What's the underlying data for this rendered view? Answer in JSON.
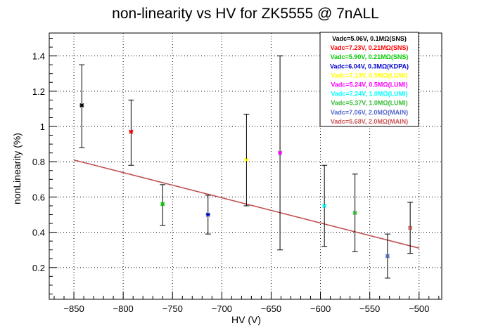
{
  "chart_data": {
    "type": "scatter",
    "title": "non-linearity vs HV for ZK5555 @ 7nALL",
    "xlabel": "HV (V)",
    "ylabel": "nonLinearity (%)",
    "xlim": [
      -875,
      -477
    ],
    "ylim": [
      0.02,
      1.53
    ],
    "x_ticks": [
      -850,
      -800,
      -750,
      -700,
      -650,
      -600,
      -550,
      -500
    ],
    "y_ticks": [
      0.2,
      0.4,
      0.6,
      0.8,
      1,
      1.2,
      1.4
    ],
    "x_tick_labels": [
      "−850",
      "−800",
      "−750",
      "−700",
      "−650",
      "−600",
      "−550",
      "−500"
    ],
    "y_tick_labels": [
      "0.2",
      "0.4",
      "0.6",
      "0.8",
      "1",
      "1.2",
      "1.4"
    ],
    "grid": true,
    "legend_position": "top-right",
    "series": [
      {
        "name": "Vadc=5.06V, 0.1MΩ(SNS)",
        "color": "#000000",
        "x": -842,
        "y": 1.12,
        "yerr_low": 0.88,
        "yerr_high": 1.35
      },
      {
        "name": "Vadc=7.23V, 0.21MΩ(SNS)",
        "color": "#ff0000",
        "x": -792,
        "y": 0.97,
        "yerr_low": 0.78,
        "yerr_high": 1.15
      },
      {
        "name": "Vadc=5.90V, 0.21MΩ(SNS)",
        "color": "#00cc00",
        "x": -760,
        "y": 0.56,
        "yerr_low": 0.44,
        "yerr_high": 0.67
      },
      {
        "name": "Vadc=6.04V, 0.3MΩ(KDPA)",
        "color": "#0000cc",
        "x": -714,
        "y": 0.5,
        "yerr_low": 0.39,
        "yerr_high": 0.61
      },
      {
        "name": "Vadc=7.13V, 0.5MΩ(LUMI)",
        "color": "#ffff00",
        "x": -675,
        "y": 0.81,
        "yerr_low": 0.55,
        "yerr_high": 1.07
      },
      {
        "name": "Vadc=5.24V, 0.5MΩ(LUMI)",
        "color": "#ff00ff",
        "x": -641,
        "y": 0.85,
        "yerr_low": 0.3,
        "yerr_high": 1.4
      },
      {
        "name": "Vadc=7.24V, 1.0MΩ(LUMI)",
        "color": "#00ffff",
        "x": -596,
        "y": 0.55,
        "yerr_low": 0.32,
        "yerr_high": 0.78
      },
      {
        "name": "Vadc=5.37V, 1.0MΩ(LUMI)",
        "color": "#33bb33",
        "x": -565,
        "y": 0.51,
        "yerr_low": 0.29,
        "yerr_high": 0.73
      },
      {
        "name": "Vadc=7.06V, 2.0MΩ(MAIN)",
        "color": "#5566cc",
        "x": -532,
        "y": 0.265,
        "yerr_low": 0.14,
        "yerr_high": 0.39
      },
      {
        "name": "Vadc=5.68V, 2.0MΩ(MAIN)",
        "color": "#cc5555",
        "x": -509,
        "y": 0.425,
        "yerr_low": 0.28,
        "yerr_high": 0.57
      }
    ],
    "fit_line": {
      "color": "#c05050",
      "x": [
        -850,
        -500
      ],
      "y": [
        0.81,
        0.31
      ]
    }
  }
}
